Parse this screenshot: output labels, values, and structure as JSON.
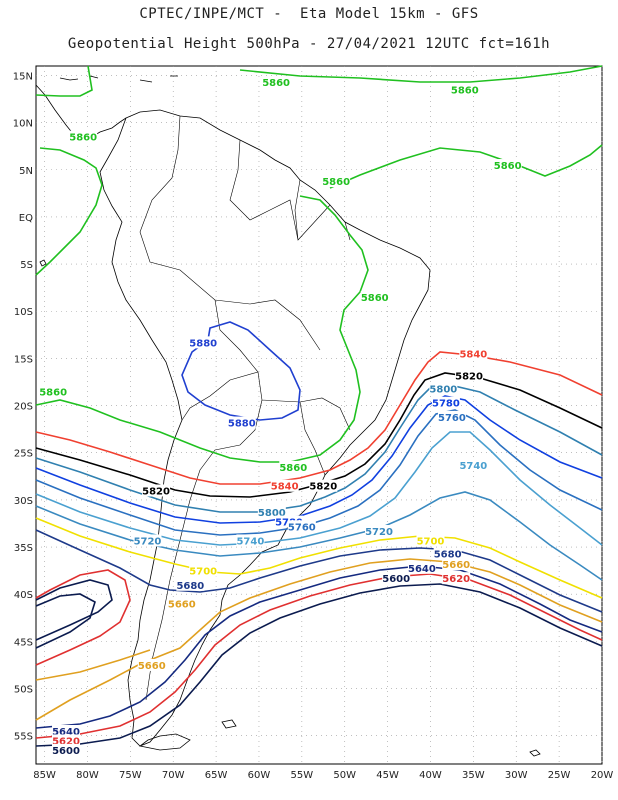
{
  "header": {
    "title_line1": "CPTEC/INPE/MCT -  Eta Model 15km - GFS",
    "title_line2": "Geopotential Height 500hPa - 27/04/2021 12UTC fct=161h"
  },
  "axes": {
    "lat_labels": [
      "15N",
      "10N",
      "5N",
      "EQ",
      "5S",
      "10S",
      "15S",
      "20S",
      "25S",
      "30S",
      "35S",
      "40S",
      "45S",
      "50S",
      "55S"
    ],
    "lat_values": [
      15,
      10,
      5,
      0,
      -5,
      -10,
      -15,
      -20,
      -25,
      -30,
      -35,
      -40,
      -45,
      -50,
      -55
    ],
    "lon_labels": [
      "85W",
      "80W",
      "75W",
      "70W",
      "65W",
      "60W",
      "55W",
      "50W",
      "45W",
      "40W",
      "35W",
      "30W",
      "25W",
      "20W"
    ],
    "lon_values": [
      -85,
      -80,
      -75,
      -70,
      -65,
      -60,
      -55,
      -50,
      -45,
      -40,
      -35,
      -30,
      -25,
      -20
    ],
    "lon_range": [
      -86,
      -20
    ],
    "lat_range": [
      -58,
      16
    ],
    "grid": "dotted"
  },
  "colors": {
    "c5580": "#1a2a6c",
    "c5600": "#0b1b4f",
    "c5620": "#e03030",
    "c5640": "#152a80",
    "c5660": "#e0a020",
    "c5680": "#1e3a8a",
    "c5700": "#f0e000",
    "c5720": "#3a8ac0",
    "c5740": "#4aa0d0",
    "c5760": "#2a70c0",
    "c5780": "#1040e0",
    "c5800": "#3080b0",
    "c5820": "#000000",
    "c5840": "#f04030",
    "c5860": "#20c020",
    "c5880": "#2040d0",
    "coast": "#000000"
  },
  "contour_labels": [
    {
      "text": "5860",
      "lon": -58,
      "lat": 14.3,
      "color": "c5860"
    },
    {
      "text": "5860",
      "lon": -36,
      "lat": 13.5,
      "color": "c5860"
    },
    {
      "text": "5860",
      "lon": -80.5,
      "lat": 8.5,
      "color": "c5860"
    },
    {
      "text": "5860",
      "lon": -31,
      "lat": 5.5,
      "color": "c5860"
    },
    {
      "text": "5860",
      "lon": -51,
      "lat": 3.8,
      "color": "c5860"
    },
    {
      "text": "5860",
      "lon": -46.5,
      "lat": -8.5,
      "color": "c5860"
    },
    {
      "text": "5860",
      "lon": -84,
      "lat": -18.5,
      "color": "c5860"
    },
    {
      "text": "5860",
      "lon": -56,
      "lat": -26.5,
      "color": "c5860"
    },
    {
      "text": "5880",
      "lon": -66.5,
      "lat": -13.3,
      "color": "c5880"
    },
    {
      "text": "5880",
      "lon": -62,
      "lat": -21.8,
      "color": "c5880"
    },
    {
      "text": "5840",
      "lon": -35,
      "lat": -14.5,
      "color": "c5840"
    },
    {
      "text": "5840",
      "lon": -57,
      "lat": -28.5,
      "color": "c5840"
    },
    {
      "text": "5820",
      "lon": -35.5,
      "lat": -16.8,
      "color": "c5820"
    },
    {
      "text": "5820",
      "lon": -72,
      "lat": -29.0,
      "color": "c5820"
    },
    {
      "text": "5820",
      "lon": -52.5,
      "lat": -28.5,
      "color": "c5820"
    },
    {
      "text": "5800",
      "lon": -38.5,
      "lat": -18.2,
      "color": "c5800"
    },
    {
      "text": "5800",
      "lon": -58.5,
      "lat": -31.3,
      "color": "c5800"
    },
    {
      "text": "5780",
      "lon": -38.2,
      "lat": -19.7,
      "color": "c5780"
    },
    {
      "text": "5780",
      "lon": -56.5,
      "lat": -32.3,
      "color": "c5780"
    },
    {
      "text": "5760",
      "lon": -37.5,
      "lat": -21.2,
      "color": "c5760"
    },
    {
      "text": "5760",
      "lon": -55,
      "lat": -32.8,
      "color": "c5760"
    },
    {
      "text": "5740",
      "lon": -35,
      "lat": -26.3,
      "color": "c5740"
    },
    {
      "text": "5740",
      "lon": -61,
      "lat": -34.3,
      "color": "c5740"
    },
    {
      "text": "5720",
      "lon": -46,
      "lat": -33.3,
      "color": "c5720"
    },
    {
      "text": "5720",
      "lon": -73,
      "lat": -34.3,
      "color": "c5720"
    },
    {
      "text": "5700",
      "lon": -40,
      "lat": -34.3,
      "color": "c5700"
    },
    {
      "text": "5700",
      "lon": -66.5,
      "lat": -37.5,
      "color": "c5700"
    },
    {
      "text": "5680",
      "lon": -38,
      "lat": -35.7,
      "color": "c5680"
    },
    {
      "text": "5680",
      "lon": -68,
      "lat": -39.0,
      "color": "c5680"
    },
    {
      "text": "5660",
      "lon": -37,
      "lat": -36.8,
      "color": "c5660"
    },
    {
      "text": "5660",
      "lon": -69,
      "lat": -41.0,
      "color": "c5660"
    },
    {
      "text": "5660",
      "lon": -72.5,
      "lat": -47.5,
      "color": "c5660"
    },
    {
      "text": "5640",
      "lon": -41,
      "lat": -37.2,
      "color": "c5640"
    },
    {
      "text": "5620",
      "lon": -37,
      "lat": -38.3,
      "color": "c5620"
    },
    {
      "text": "5600",
      "lon": -44,
      "lat": -38.3,
      "color": "c5600"
    },
    {
      "text": "5640",
      "lon": -82.5,
      "lat": -54.5,
      "color": "c5640"
    },
    {
      "text": "5620",
      "lon": -82.5,
      "lat": -55.5,
      "color": "c5620"
    },
    {
      "text": "5600",
      "lon": -82.5,
      "lat": -56.5,
      "color": "c5600"
    }
  ]
}
